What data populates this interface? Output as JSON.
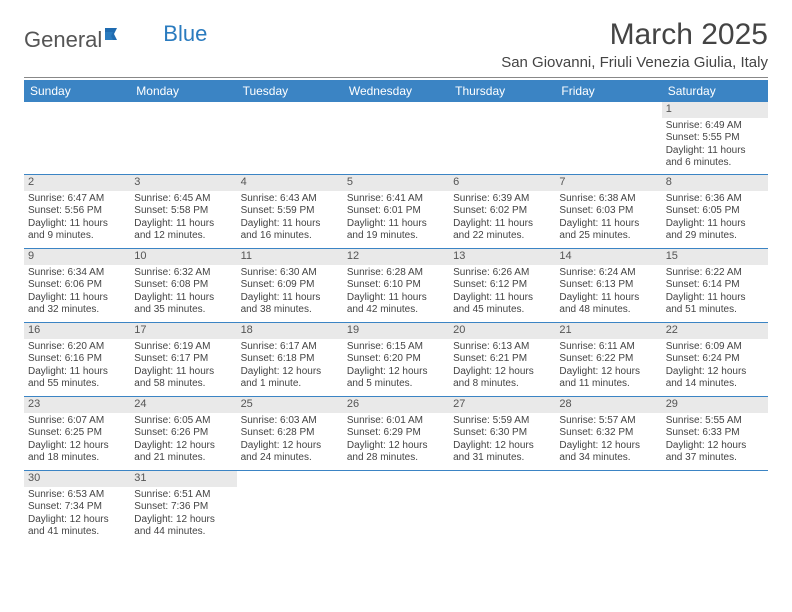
{
  "brand": {
    "part1": "General",
    "part2": "Blue"
  },
  "title": "March 2025",
  "location": "San Giovanni, Friuli Venezia Giulia, Italy",
  "colors": {
    "header_bg": "#3b84c4",
    "header_text": "#ffffff",
    "rule": "#888888",
    "daynum_bg": "#e9e9e9",
    "text": "#444444",
    "brand_accent": "#2a7bbf"
  },
  "typography": {
    "title_fontsize": 30,
    "location_fontsize": 15,
    "dayheader_fontsize": 12,
    "body_fontsize": 10
  },
  "day_headers": [
    "Sunday",
    "Monday",
    "Tuesday",
    "Wednesday",
    "Thursday",
    "Friday",
    "Saturday"
  ],
  "weeks": [
    [
      null,
      null,
      null,
      null,
      null,
      null,
      {
        "n": "1",
        "sr": "Sunrise: 6:49 AM",
        "ss": "Sunset: 5:55 PM",
        "d1": "Daylight: 11 hours",
        "d2": "and 6 minutes."
      }
    ],
    [
      {
        "n": "2",
        "sr": "Sunrise: 6:47 AM",
        "ss": "Sunset: 5:56 PM",
        "d1": "Daylight: 11 hours",
        "d2": "and 9 minutes."
      },
      {
        "n": "3",
        "sr": "Sunrise: 6:45 AM",
        "ss": "Sunset: 5:58 PM",
        "d1": "Daylight: 11 hours",
        "d2": "and 12 minutes."
      },
      {
        "n": "4",
        "sr": "Sunrise: 6:43 AM",
        "ss": "Sunset: 5:59 PM",
        "d1": "Daylight: 11 hours",
        "d2": "and 16 minutes."
      },
      {
        "n": "5",
        "sr": "Sunrise: 6:41 AM",
        "ss": "Sunset: 6:01 PM",
        "d1": "Daylight: 11 hours",
        "d2": "and 19 minutes."
      },
      {
        "n": "6",
        "sr": "Sunrise: 6:39 AM",
        "ss": "Sunset: 6:02 PM",
        "d1": "Daylight: 11 hours",
        "d2": "and 22 minutes."
      },
      {
        "n": "7",
        "sr": "Sunrise: 6:38 AM",
        "ss": "Sunset: 6:03 PM",
        "d1": "Daylight: 11 hours",
        "d2": "and 25 minutes."
      },
      {
        "n": "8",
        "sr": "Sunrise: 6:36 AM",
        "ss": "Sunset: 6:05 PM",
        "d1": "Daylight: 11 hours",
        "d2": "and 29 minutes."
      }
    ],
    [
      {
        "n": "9",
        "sr": "Sunrise: 6:34 AM",
        "ss": "Sunset: 6:06 PM",
        "d1": "Daylight: 11 hours",
        "d2": "and 32 minutes."
      },
      {
        "n": "10",
        "sr": "Sunrise: 6:32 AM",
        "ss": "Sunset: 6:08 PM",
        "d1": "Daylight: 11 hours",
        "d2": "and 35 minutes."
      },
      {
        "n": "11",
        "sr": "Sunrise: 6:30 AM",
        "ss": "Sunset: 6:09 PM",
        "d1": "Daylight: 11 hours",
        "d2": "and 38 minutes."
      },
      {
        "n": "12",
        "sr": "Sunrise: 6:28 AM",
        "ss": "Sunset: 6:10 PM",
        "d1": "Daylight: 11 hours",
        "d2": "and 42 minutes."
      },
      {
        "n": "13",
        "sr": "Sunrise: 6:26 AM",
        "ss": "Sunset: 6:12 PM",
        "d1": "Daylight: 11 hours",
        "d2": "and 45 minutes."
      },
      {
        "n": "14",
        "sr": "Sunrise: 6:24 AM",
        "ss": "Sunset: 6:13 PM",
        "d1": "Daylight: 11 hours",
        "d2": "and 48 minutes."
      },
      {
        "n": "15",
        "sr": "Sunrise: 6:22 AM",
        "ss": "Sunset: 6:14 PM",
        "d1": "Daylight: 11 hours",
        "d2": "and 51 minutes."
      }
    ],
    [
      {
        "n": "16",
        "sr": "Sunrise: 6:20 AM",
        "ss": "Sunset: 6:16 PM",
        "d1": "Daylight: 11 hours",
        "d2": "and 55 minutes."
      },
      {
        "n": "17",
        "sr": "Sunrise: 6:19 AM",
        "ss": "Sunset: 6:17 PM",
        "d1": "Daylight: 11 hours",
        "d2": "and 58 minutes."
      },
      {
        "n": "18",
        "sr": "Sunrise: 6:17 AM",
        "ss": "Sunset: 6:18 PM",
        "d1": "Daylight: 12 hours",
        "d2": "and 1 minute."
      },
      {
        "n": "19",
        "sr": "Sunrise: 6:15 AM",
        "ss": "Sunset: 6:20 PM",
        "d1": "Daylight: 12 hours",
        "d2": "and 5 minutes."
      },
      {
        "n": "20",
        "sr": "Sunrise: 6:13 AM",
        "ss": "Sunset: 6:21 PM",
        "d1": "Daylight: 12 hours",
        "d2": "and 8 minutes."
      },
      {
        "n": "21",
        "sr": "Sunrise: 6:11 AM",
        "ss": "Sunset: 6:22 PM",
        "d1": "Daylight: 12 hours",
        "d2": "and 11 minutes."
      },
      {
        "n": "22",
        "sr": "Sunrise: 6:09 AM",
        "ss": "Sunset: 6:24 PM",
        "d1": "Daylight: 12 hours",
        "d2": "and 14 minutes."
      }
    ],
    [
      {
        "n": "23",
        "sr": "Sunrise: 6:07 AM",
        "ss": "Sunset: 6:25 PM",
        "d1": "Daylight: 12 hours",
        "d2": "and 18 minutes."
      },
      {
        "n": "24",
        "sr": "Sunrise: 6:05 AM",
        "ss": "Sunset: 6:26 PM",
        "d1": "Daylight: 12 hours",
        "d2": "and 21 minutes."
      },
      {
        "n": "25",
        "sr": "Sunrise: 6:03 AM",
        "ss": "Sunset: 6:28 PM",
        "d1": "Daylight: 12 hours",
        "d2": "and 24 minutes."
      },
      {
        "n": "26",
        "sr": "Sunrise: 6:01 AM",
        "ss": "Sunset: 6:29 PM",
        "d1": "Daylight: 12 hours",
        "d2": "and 28 minutes."
      },
      {
        "n": "27",
        "sr": "Sunrise: 5:59 AM",
        "ss": "Sunset: 6:30 PM",
        "d1": "Daylight: 12 hours",
        "d2": "and 31 minutes."
      },
      {
        "n": "28",
        "sr": "Sunrise: 5:57 AM",
        "ss": "Sunset: 6:32 PM",
        "d1": "Daylight: 12 hours",
        "d2": "and 34 minutes."
      },
      {
        "n": "29",
        "sr": "Sunrise: 5:55 AM",
        "ss": "Sunset: 6:33 PM",
        "d1": "Daylight: 12 hours",
        "d2": "and 37 minutes."
      }
    ],
    [
      {
        "n": "30",
        "sr": "Sunrise: 6:53 AM",
        "ss": "Sunset: 7:34 PM",
        "d1": "Daylight: 12 hours",
        "d2": "and 41 minutes."
      },
      {
        "n": "31",
        "sr": "Sunrise: 6:51 AM",
        "ss": "Sunset: 7:36 PM",
        "d1": "Daylight: 12 hours",
        "d2": "and 44 minutes."
      },
      null,
      null,
      null,
      null,
      null
    ]
  ]
}
